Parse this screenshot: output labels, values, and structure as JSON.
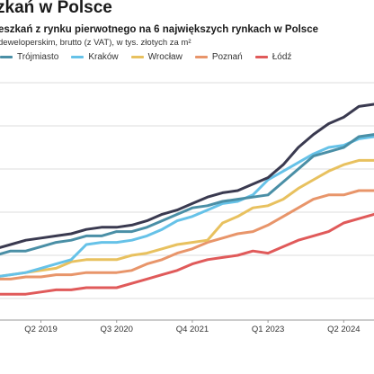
{
  "title": "zkań w Polsce",
  "subtitle": "eszkań z rynku pierwotnego na 6 największych rynkach w Polsce",
  "note": "deweloperskim, brutto (z VAT), w tys. złotych za m²",
  "colors": {
    "Gdańsk": "#3a3a50",
    "Trójmiasto": "#4a8fa6",
    "Kraków": "#66c2e8",
    "Wrocław": "#e8c15f",
    "Poznań": "#e8956a",
    "Łódź": "#e05a5a"
  },
  "chart_data": {
    "type": "line",
    "x": [
      "Q3 2018",
      "Q4 2018",
      "Q1 2019",
      "Q2 2019",
      "Q3 2019",
      "Q4 2019",
      "Q1 2020",
      "Q2 2020",
      "Q3 2020",
      "Q4 2020",
      "Q1 2021",
      "Q2 2021",
      "Q3 2021",
      "Q4 2021",
      "Q1 2022",
      "Q2 2022",
      "Q3 2022",
      "Q4 2022",
      "Q1 2023",
      "Q2 2023",
      "Q3 2023",
      "Q4 2023",
      "Q1 2024",
      "Q2 2024",
      "Q3 2024",
      "Q4 2024"
    ],
    "xticks": [
      "Q2 2019",
      "Q3 2020",
      "Q4 2021",
      "Q1 2023",
      "Q2 2024"
    ],
    "grid": true,
    "legend": "top-left",
    "series": [
      {
        "name": "",
        "values": [
          8.3,
          8.5,
          8.7,
          8.8,
          8.9,
          9.0,
          9.2,
          9.3,
          9.3,
          9.4,
          9.6,
          9.9,
          10.1,
          10.4,
          10.7,
          10.9,
          11.0,
          11.3,
          11.6,
          12.2,
          13.0,
          13.6,
          14.1,
          14.4,
          14.9,
          15.0
        ]
      },
      {
        "name": "Trójmiasto",
        "values": [
          8.0,
          8.2,
          8.2,
          8.4,
          8.6,
          8.7,
          8.9,
          8.9,
          9.1,
          9.1,
          9.3,
          9.6,
          9.9,
          10.2,
          10.3,
          10.5,
          10.6,
          10.7,
          10.8,
          11.4,
          12.0,
          12.6,
          12.8,
          13.0,
          13.5,
          13.6
        ]
      },
      {
        "name": "Kraków",
        "values": [
          7.0,
          7.1,
          7.2,
          7.4,
          7.6,
          7.8,
          8.5,
          8.6,
          8.6,
          8.7,
          8.9,
          9.2,
          9.6,
          9.8,
          10.1,
          10.4,
          10.5,
          10.8,
          11.5,
          11.9,
          12.3,
          12.7,
          13.0,
          13.1,
          13.4,
          13.5
        ]
      },
      {
        "name": "Wrocław",
        "values": [
          7.0,
          7.1,
          7.2,
          7.3,
          7.4,
          7.7,
          7.8,
          7.8,
          7.8,
          8.0,
          8.1,
          8.3,
          8.5,
          8.6,
          8.7,
          9.5,
          9.8,
          10.2,
          10.3,
          10.6,
          11.1,
          11.5,
          11.9,
          12.2,
          12.4,
          12.4
        ]
      },
      {
        "name": "Poznań",
        "values": [
          6.9,
          6.9,
          7.0,
          7.0,
          7.1,
          7.1,
          7.2,
          7.2,
          7.2,
          7.3,
          7.6,
          7.8,
          8.1,
          8.3,
          8.6,
          8.8,
          9.0,
          9.1,
          9.4,
          9.8,
          10.2,
          10.6,
          10.8,
          10.8,
          11.0,
          11.0
        ]
      },
      {
        "name": "Łódź",
        "values": [
          6.2,
          6.2,
          6.2,
          6.3,
          6.4,
          6.4,
          6.5,
          6.5,
          6.5,
          6.7,
          6.9,
          7.1,
          7.3,
          7.6,
          7.8,
          7.9,
          8.0,
          8.2,
          8.1,
          8.4,
          8.7,
          8.9,
          9.1,
          9.5,
          9.7,
          9.9
        ]
      }
    ]
  }
}
